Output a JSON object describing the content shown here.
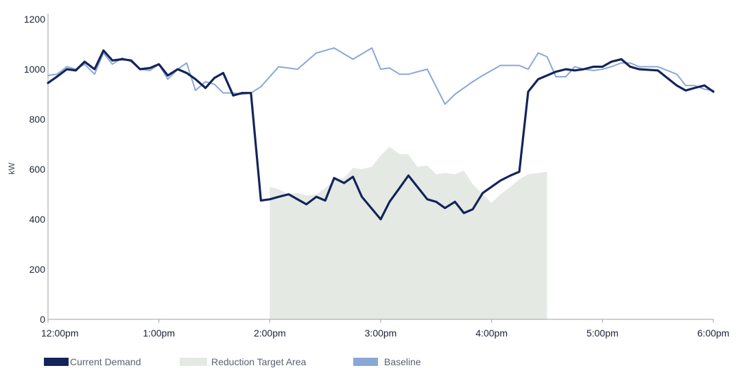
{
  "chart_data": {
    "type": "line",
    "title": "",
    "xlabel": "",
    "ylabel": "kW",
    "ylim": [
      0,
      1200
    ],
    "xlim_hours": [
      0,
      6
    ],
    "yticks": [
      {
        "value": 0,
        "label": "0"
      },
      {
        "value": 200,
        "label": "200"
      },
      {
        "value": 400,
        "label": "400"
      },
      {
        "value": 600,
        "label": "600"
      },
      {
        "value": 800,
        "label": "800"
      },
      {
        "value": 1000,
        "label": "1000"
      },
      {
        "value": 1200,
        "label": "1200"
      }
    ],
    "xticks": [
      {
        "value": 0,
        "label": "12:00pm"
      },
      {
        "value": 1,
        "label": "1:00pm"
      },
      {
        "value": 2,
        "label": "2:00pm"
      },
      {
        "value": 3,
        "label": "3:00pm"
      },
      {
        "value": 4,
        "label": "4:00pm"
      },
      {
        "value": 5,
        "label": "5:00pm"
      },
      {
        "value": 6,
        "label": "6:00pm"
      }
    ],
    "grid": false,
    "legend_position": "bottom-left",
    "colors": {
      "current_demand": "#13245a",
      "baseline": "#8aa7d8",
      "reduction_area": "#e4e9e4",
      "axis": "#9aa0a8"
    },
    "series": [
      {
        "name": "Baseline",
        "key": "baseline",
        "x": [
          0,
          0.08,
          0.17,
          0.25,
          0.33,
          0.42,
          0.5,
          0.58,
          0.67,
          0.75,
          0.83,
          0.92,
          1.0,
          1.08,
          1.17,
          1.25,
          1.33,
          1.42,
          1.5,
          1.58,
          1.67,
          1.75,
          1.83,
          1.92,
          2.08,
          2.25,
          2.42,
          2.58,
          2.75,
          2.92,
          3.0,
          3.08,
          3.17,
          3.25,
          3.42,
          3.58,
          3.67,
          3.83,
          3.92,
          4.08,
          4.25,
          4.33,
          4.42,
          4.5,
          4.58,
          4.67,
          4.75,
          4.83,
          4.92,
          5.0,
          5.08,
          5.17,
          5.25,
          5.33,
          5.5,
          5.67,
          5.75,
          5.83,
          5.92,
          6.0
        ],
        "values": [
          975,
          980,
          1010,
          1000,
          1020,
          980,
          1065,
          1020,
          1045,
          1030,
          1000,
          995,
          1020,
          960,
          1000,
          1025,
          915,
          950,
          940,
          905,
          905,
          900,
          905,
          930,
          1010,
          1000,
          1065,
          1085,
          1040,
          1085,
          1000,
          1005,
          980,
          980,
          1000,
          860,
          900,
          950,
          975,
          1015,
          1015,
          1000,
          1065,
          1050,
          970,
          970,
          1010,
          1000,
          995,
          1000,
          1010,
          1025,
          1025,
          1010,
          1010,
          980,
          935,
          935,
          920,
          915
        ]
      },
      {
        "name": "Current Demand",
        "key": "current_demand",
        "x": [
          0,
          0.08,
          0.17,
          0.25,
          0.33,
          0.42,
          0.5,
          0.58,
          0.67,
          0.75,
          0.83,
          0.92,
          1.0,
          1.08,
          1.17,
          1.25,
          1.33,
          1.42,
          1.5,
          1.58,
          1.67,
          1.75,
          1.83,
          1.92,
          2.0,
          2.08,
          2.17,
          2.25,
          2.33,
          2.42,
          2.5,
          2.58,
          2.67,
          2.75,
          2.83,
          3.0,
          3.08,
          3.17,
          3.25,
          3.42,
          3.5,
          3.58,
          3.67,
          3.75,
          3.83,
          3.92,
          4.0,
          4.08,
          4.17,
          4.25,
          4.33,
          4.42,
          4.5,
          4.58,
          4.67,
          4.75,
          4.83,
          4.92,
          5.0,
          5.08,
          5.17,
          5.25,
          5.33,
          5.5,
          5.67,
          5.75,
          5.83,
          5.92,
          6.0
        ],
        "values": [
          945,
          970,
          1000,
          995,
          1030,
          1000,
          1075,
          1035,
          1040,
          1035,
          1000,
          1005,
          1020,
          975,
          1000,
          985,
          960,
          925,
          965,
          985,
          895,
          905,
          905,
          475,
          480,
          490,
          500,
          480,
          460,
          490,
          475,
          565,
          545,
          570,
          490,
          400,
          470,
          525,
          575,
          480,
          470,
          445,
          470,
          425,
          440,
          505,
          530,
          555,
          575,
          590,
          910,
          960,
          975,
          990,
          1000,
          995,
          1000,
          1010,
          1010,
          1030,
          1040,
          1010,
          1000,
          995,
          935,
          915,
          925,
          935,
          910
        ]
      }
    ],
    "reduction_target_area": {
      "name": "Reduction Target Area",
      "x": [
        2.0,
        2.08,
        2.17,
        2.25,
        2.33,
        2.42,
        2.5,
        2.58,
        2.67,
        2.75,
        2.83,
        2.92,
        3.0,
        3.08,
        3.17,
        3.25,
        3.33,
        3.42,
        3.5,
        3.58,
        3.67,
        3.75,
        3.83,
        3.92,
        4.0,
        4.08,
        4.17,
        4.25,
        4.33,
        4.42,
        4.5
      ],
      "values": [
        530,
        520,
        500,
        505,
        495,
        500,
        525,
        555,
        565,
        605,
        600,
        610,
        655,
        690,
        660,
        660,
        610,
        615,
        580,
        585,
        580,
        595,
        540,
        500,
        465,
        500,
        530,
        560,
        580,
        585,
        590
      ]
    },
    "legend": [
      {
        "label": "Current Demand",
        "key": "current_demand"
      },
      {
        "label": "Reduction Target Area",
        "key": "reduction_area"
      },
      {
        "label": "Baseline",
        "key": "baseline"
      }
    ]
  }
}
